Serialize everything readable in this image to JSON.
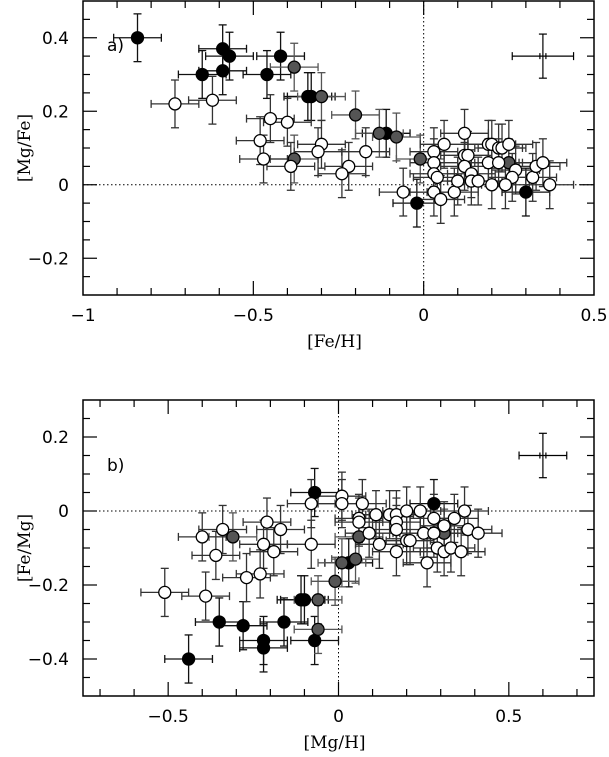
{
  "chart_data": [
    {
      "type": "scatter",
      "panel_label": "a)",
      "xlabel": "[Fe/H]",
      "ylabel": "[Mg/Fe]",
      "xlim": [
        -1,
        0.5
      ],
      "ylim": [
        -0.3,
        0.5
      ],
      "xticks": [
        {
          "v": -1,
          "label": "−1"
        },
        {
          "v": -0.5,
          "label": "−0.5"
        },
        {
          "v": 0,
          "label": "0"
        },
        {
          "v": 0.5,
          "label": "0.5"
        }
      ],
      "yticks": [
        {
          "v": -0.2,
          "label": "−0.2"
        },
        {
          "v": 0,
          "label": "0"
        },
        {
          "v": 0.2,
          "label": "0.2"
        },
        {
          "v": 0.4,
          "label": "0.4"
        }
      ],
      "minor_step": 0.1,
      "reference_lines": {
        "x": 0,
        "y": 0
      },
      "typical_error": {
        "x": 0.35,
        "y": 0.35,
        "xerr": 0.09,
        "yerr": 0.06
      },
      "series": [
        {
          "name": "filled",
          "color": "#000000",
          "points": [
            [
              -0.84,
              0.4
            ],
            [
              -0.59,
              0.37
            ],
            [
              -0.57,
              0.35
            ],
            [
              -0.65,
              0.3
            ],
            [
              -0.59,
              0.31
            ],
            [
              -0.46,
              0.3
            ],
            [
              -0.42,
              0.35
            ],
            [
              -0.34,
              0.24
            ],
            [
              -0.33,
              0.24
            ],
            [
              -0.11,
              0.14
            ],
            [
              -0.02,
              -0.05
            ],
            [
              0.3,
              -0.02
            ]
          ]
        },
        {
          "name": "grey",
          "color": "#555555",
          "points": [
            [
              -0.38,
              0.32
            ],
            [
              -0.38,
              0.07
            ],
            [
              -0.3,
              0.24
            ],
            [
              -0.2,
              0.19
            ],
            [
              -0.13,
              0.14
            ],
            [
              -0.08,
              0.13
            ],
            [
              -0.01,
              0.07
            ],
            [
              0.25,
              0.06
            ]
          ]
        },
        {
          "name": "open",
          "color": "#ffffff",
          "points": [
            [
              -0.73,
              0.22
            ],
            [
              -0.62,
              0.23
            ],
            [
              -0.45,
              0.18
            ],
            [
              -0.4,
              0.17
            ],
            [
              -0.48,
              0.12
            ],
            [
              -0.47,
              0.07
            ],
            [
              -0.39,
              0.05
            ],
            [
              -0.3,
              0.11
            ],
            [
              -0.31,
              0.09
            ],
            [
              -0.17,
              0.09
            ],
            [
              -0.22,
              0.05
            ],
            [
              -0.24,
              0.03
            ],
            [
              -0.06,
              -0.02
            ],
            [
              0.03,
              0.09
            ],
            [
              0.06,
              0.11
            ],
            [
              0.03,
              0.06
            ],
            [
              0.03,
              0.03
            ],
            [
              0.04,
              0.02
            ],
            [
              0.03,
              -0.02
            ],
            [
              0.05,
              -0.04
            ],
            [
              0.09,
              -0.02
            ],
            [
              0.1,
              0.01
            ],
            [
              0.12,
              0.14
            ],
            [
              0.12,
              0.08
            ],
            [
              0.13,
              0.08
            ],
            [
              0.12,
              0.05
            ],
            [
              0.14,
              0.03
            ],
            [
              0.14,
              0.01
            ],
            [
              0.16,
              0.01
            ],
            [
              0.19,
              0.11
            ],
            [
              0.2,
              0.11
            ],
            [
              0.22,
              0.1
            ],
            [
              0.23,
              0.1
            ],
            [
              0.25,
              0.11
            ],
            [
              0.19,
              0.06
            ],
            [
              0.22,
              0.06
            ],
            [
              0.27,
              0.04
            ],
            [
              0.26,
              0.02
            ],
            [
              0.2,
              0.0
            ],
            [
              0.24,
              0.0
            ],
            [
              0.32,
              0.02
            ],
            [
              0.33,
              0.05
            ],
            [
              0.35,
              0.06
            ],
            [
              0.37,
              0.0
            ]
          ]
        }
      ],
      "errors": {
        "xerr": 0.07,
        "yerr": 0.065
      }
    },
    {
      "type": "scatter",
      "panel_label": "b)",
      "xlabel": "[Mg/H]",
      "ylabel": "[Fe/Mg]",
      "xlim": [
        -0.75,
        0.75
      ],
      "ylim": [
        -0.5,
        0.3
      ],
      "xticks": [
        {
          "v": -0.5,
          "label": "−0.5"
        },
        {
          "v": 0,
          "label": "0"
        },
        {
          "v": 0.5,
          "label": "0.5"
        }
      ],
      "yticks": [
        {
          "v": -0.4,
          "label": "−0.4"
        },
        {
          "v": -0.2,
          "label": "−0.2"
        },
        {
          "v": 0,
          "label": "0"
        },
        {
          "v": 0.2,
          "label": "0.2"
        }
      ],
      "minor_step": 0.1,
      "reference_lines": {
        "x": 0,
        "y": 0
      },
      "typical_error": {
        "x": 0.6,
        "y": 0.15,
        "xerr": 0.07,
        "yerr": 0.06
      },
      "series": [
        {
          "name": "filled",
          "color": "#000000",
          "points": [
            [
              -0.44,
              -0.4
            ],
            [
              -0.35,
              -0.3
            ],
            [
              -0.28,
              -0.31
            ],
            [
              -0.22,
              -0.35
            ],
            [
              -0.22,
              -0.37
            ],
            [
              -0.16,
              -0.3
            ],
            [
              -0.11,
              -0.24
            ],
            [
              -0.1,
              -0.24
            ],
            [
              -0.07,
              -0.35
            ],
            [
              -0.07,
              0.05
            ],
            [
              0.03,
              -0.14
            ],
            [
              0.28,
              0.02
            ]
          ]
        },
        {
          "name": "grey",
          "color": "#555555",
          "points": [
            [
              -0.31,
              -0.07
            ],
            [
              -0.06,
              -0.24
            ],
            [
              -0.06,
              -0.32
            ],
            [
              -0.01,
              -0.19
            ],
            [
              0.01,
              -0.14
            ],
            [
              0.05,
              -0.13
            ],
            [
              0.06,
              -0.07
            ],
            [
              0.31,
              -0.06
            ]
          ]
        },
        {
          "name": "open",
          "color": "#ffffff",
          "points": [
            [
              -0.51,
              -0.22
            ],
            [
              -0.4,
              -0.07
            ],
            [
              -0.34,
              -0.05
            ],
            [
              -0.36,
              -0.12
            ],
            [
              -0.39,
              -0.23
            ],
            [
              -0.27,
              -0.18
            ],
            [
              -0.23,
              -0.17
            ],
            [
              -0.22,
              -0.09
            ],
            [
              -0.21,
              -0.03
            ],
            [
              -0.19,
              -0.11
            ],
            [
              -0.17,
              -0.05
            ],
            [
              -0.08,
              0.02
            ],
            [
              -0.08,
              -0.09
            ],
            [
              0.01,
              0.04
            ],
            [
              0.01,
              0.02
            ],
            [
              0.07,
              0.02
            ],
            [
              0.06,
              -0.02
            ],
            [
              0.06,
              -0.03
            ],
            [
              0.09,
              -0.06
            ],
            [
              0.11,
              -0.01
            ],
            [
              0.12,
              -0.09
            ],
            [
              0.15,
              -0.01
            ],
            [
              0.17,
              -0.01
            ],
            [
              0.17,
              -0.03
            ],
            [
              0.17,
              -0.05
            ],
            [
              0.17,
              -0.11
            ],
            [
              0.2,
              0.0
            ],
            [
              0.2,
              -0.08
            ],
            [
              0.21,
              -0.08
            ],
            [
              0.24,
              0.0
            ],
            [
              0.25,
              -0.06
            ],
            [
              0.26,
              -0.14
            ],
            [
              0.28,
              -0.02
            ],
            [
              0.28,
              -0.06
            ],
            [
              0.29,
              -0.1
            ],
            [
              0.31,
              -0.04
            ],
            [
              0.31,
              -0.11
            ],
            [
              0.33,
              -0.1
            ],
            [
              0.34,
              -0.02
            ],
            [
              0.36,
              -0.11
            ],
            [
              0.37,
              0.0
            ],
            [
              0.38,
              -0.05
            ],
            [
              0.41,
              -0.06
            ]
          ]
        }
      ],
      "errors": {
        "xerr": 0.07,
        "yerr": 0.065
      }
    }
  ]
}
